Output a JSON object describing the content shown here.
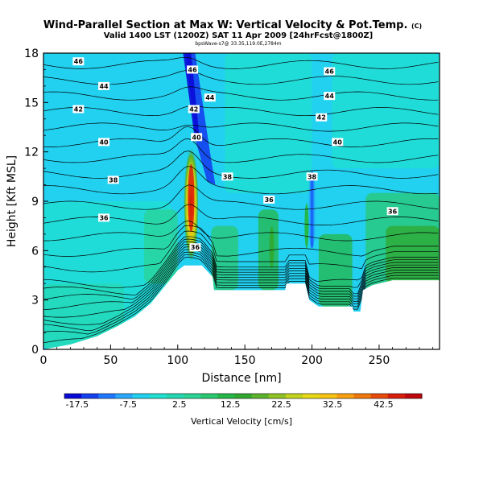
{
  "chart_data": {
    "type": "heatmap",
    "title": "Wind-Parallel Section at Max W: Vertical Velocity & Pot.Temp.",
    "title_mark": "(C)",
    "subtitle": "Valid 1400 LST (1200Z) SAT 11 Apr 2009 [24hrFcst@1800Z]",
    "subtitle2": "bpsWave-s7@ 33.35,119.0E,2784m",
    "xlabel": "Distance [nm]",
    "ylabel": "Height [Kft MSL]",
    "xlim": [
      0,
      295
    ],
    "ylim": [
      0,
      18
    ],
    "x_ticks": [
      0,
      50,
      100,
      150,
      200,
      250
    ],
    "y_ticks": [
      0,
      3,
      6,
      9,
      12,
      15,
      18
    ],
    "colorbar": {
      "label": "Vertical Velocity [cm/s]",
      "min": -20,
      "max": 50,
      "tick_values": [
        -17.5,
        -7.5,
        2.5,
        12.5,
        22.5,
        32.5,
        42.5
      ],
      "tick_labels": [
        "-17.5",
        "-7.5",
        "2.5",
        "12.5",
        "22.5",
        "32.5",
        "42.5"
      ],
      "colors": [
        "#0a0ad8",
        "#1440f0",
        "#1e78ff",
        "#28a8ff",
        "#22d0f0",
        "#20e0d2",
        "#24d8b4",
        "#2ad494",
        "#2ac870",
        "#24b848",
        "#30a82e",
        "#5cb42c",
        "#90c224",
        "#c2d41c",
        "#e8da16",
        "#f8c412",
        "#f8a010",
        "#f0780c",
        "#e84a0a",
        "#d81e0a",
        "#c0080c"
      ]
    },
    "terrain": [
      [
        0,
        0
      ],
      [
        20,
        0.3
      ],
      [
        40,
        0.8
      ],
      [
        55,
        1.4
      ],
      [
        68,
        2.0
      ],
      [
        80,
        2.8
      ],
      [
        90,
        3.8
      ],
      [
        100,
        4.8
      ],
      [
        105,
        5.1
      ],
      [
        118,
        5.1
      ],
      [
        126,
        4.4
      ],
      [
        127,
        3.6
      ],
      [
        180,
        3.6
      ],
      [
        181,
        4.0
      ],
      [
        195,
        4.0
      ],
      [
        198,
        3.0
      ],
      [
        205,
        2.6
      ],
      [
        230,
        2.6
      ],
      [
        231,
        2.3
      ],
      [
        236,
        2.3
      ],
      [
        238,
        3.6
      ],
      [
        245,
        3.9
      ],
      [
        260,
        4.2
      ],
      [
        295,
        4.2
      ]
    ],
    "updraft_max_cm_s": 48,
    "downdraft_min_cm_s": -18,
    "contour_labels": [
      {
        "text": "46",
        "x": 26,
        "y": 17.5
      },
      {
        "text": "44",
        "x": 45,
        "y": 16.0
      },
      {
        "text": "42",
        "x": 26,
        "y": 14.6
      },
      {
        "text": "40",
        "x": 45,
        "y": 12.6
      },
      {
        "text": "38",
        "x": 52,
        "y": 10.3
      },
      {
        "text": "36",
        "x": 45,
        "y": 8.0
      },
      {
        "text": "46",
        "x": 111,
        "y": 17.0
      },
      {
        "text": "44",
        "x": 124,
        "y": 15.3
      },
      {
        "text": "42",
        "x": 112,
        "y": 14.6
      },
      {
        "text": "40",
        "x": 114,
        "y": 12.9
      },
      {
        "text": "38",
        "x": 137,
        "y": 10.5
      },
      {
        "text": "36",
        "x": 168,
        "y": 9.1
      },
      {
        "text": "38",
        "x": 200,
        "y": 10.5
      },
      {
        "text": "46",
        "x": 213,
        "y": 16.9
      },
      {
        "text": "44",
        "x": 213,
        "y": 15.4
      },
      {
        "text": "42",
        "x": 207,
        "y": 14.1
      },
      {
        "text": "40",
        "x": 219,
        "y": 12.6
      },
      {
        "text": "36",
        "x": 260,
        "y": 8.4
      },
      {
        "text": "36",
        "x": 113,
        "y": 6.2
      }
    ]
  }
}
